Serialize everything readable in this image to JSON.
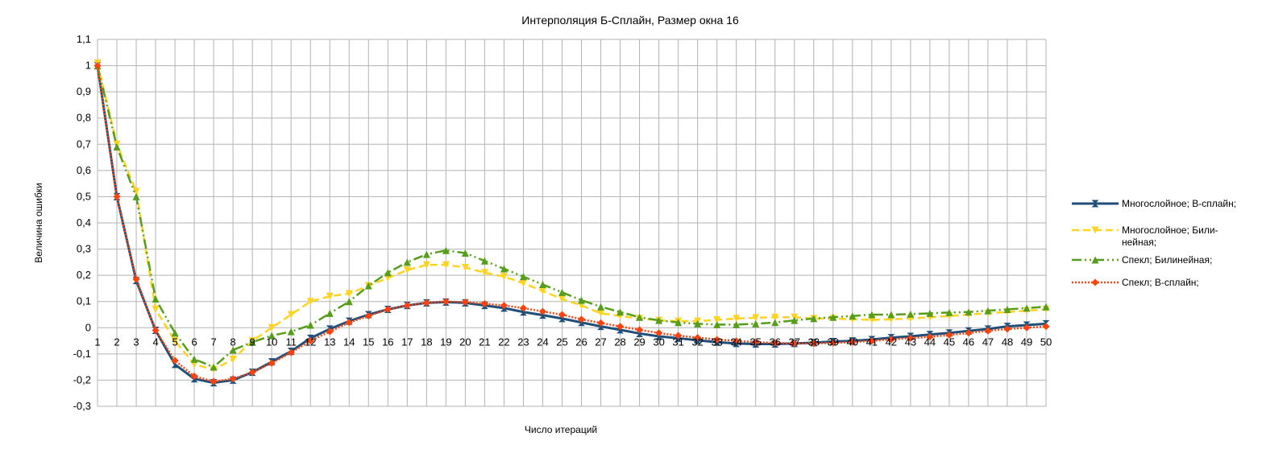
{
  "chart_data": {
    "type": "line",
    "title": "Интерполяция Б-Сплайн, Размер окна 16",
    "xlabel": "Число итераций",
    "ylabel": "Величина ошибки",
    "ylim": [
      -0.3,
      1.1
    ],
    "ytick_labels": [
      "1,1",
      "1",
      "0,9",
      "0,8",
      "0,7",
      "0,6",
      "0,5",
      "0,4",
      "0,3",
      "0,2",
      "0,1",
      "0",
      "-0,1",
      "-0,2",
      "-0,3"
    ],
    "x": [
      1,
      2,
      3,
      4,
      5,
      6,
      7,
      8,
      9,
      10,
      11,
      12,
      13,
      14,
      15,
      16,
      17,
      18,
      19,
      20,
      21,
      22,
      23,
      24,
      25,
      26,
      27,
      28,
      29,
      30,
      31,
      32,
      33,
      34,
      35,
      36,
      37,
      38,
      39,
      40,
      41,
      42,
      43,
      44,
      45,
      46,
      47,
      48,
      49,
      50
    ],
    "grid": true,
    "legend_position": "right",
    "series": [
      {
        "name": "Многослойное; B-сплайн;",
        "color": "#1f4e79",
        "marker": "hourglass",
        "values": [
          1.0,
          0.5,
          0.18,
          -0.01,
          -0.14,
          -0.195,
          -0.21,
          -0.2,
          -0.17,
          -0.13,
          -0.09,
          -0.04,
          -0.005,
          0.025,
          0.05,
          0.07,
          0.085,
          0.095,
          0.098,
          0.095,
          0.085,
          0.075,
          0.06,
          0.048,
          0.035,
          0.02,
          0.005,
          -0.008,
          -0.022,
          -0.033,
          -0.04,
          -0.048,
          -0.055,
          -0.06,
          -0.062,
          -0.062,
          -0.06,
          -0.057,
          -0.053,
          -0.05,
          -0.045,
          -0.038,
          -0.033,
          -0.026,
          -0.02,
          -0.012,
          -0.005,
          0.005,
          0.01,
          0.015
        ]
      },
      {
        "name": "Многослойное; Билинейная;",
        "color": "#ffd320",
        "marker": "triangle-down",
        "values": [
          1.01,
          0.7,
          0.52,
          0.07,
          -0.05,
          -0.14,
          -0.16,
          -0.12,
          -0.05,
          0.0,
          0.05,
          0.1,
          0.12,
          0.13,
          0.16,
          0.19,
          0.22,
          0.24,
          0.24,
          0.23,
          0.21,
          0.195,
          0.17,
          0.14,
          0.11,
          0.085,
          0.055,
          0.045,
          0.035,
          0.028,
          0.025,
          0.025,
          0.03,
          0.035,
          0.038,
          0.04,
          0.04,
          0.035,
          0.035,
          0.032,
          0.03,
          0.032,
          0.035,
          0.04,
          0.045,
          0.05,
          0.055,
          0.06,
          0.065,
          0.07
        ]
      },
      {
        "name": "Спекл; Билинейная;",
        "color": "#579d1c",
        "marker": "triangle-up",
        "values": [
          1.0,
          0.69,
          0.5,
          0.11,
          -0.02,
          -0.12,
          -0.15,
          -0.085,
          -0.055,
          -0.03,
          -0.015,
          0.01,
          0.055,
          0.1,
          0.16,
          0.21,
          0.25,
          0.28,
          0.295,
          0.285,
          0.255,
          0.225,
          0.195,
          0.165,
          0.135,
          0.105,
          0.08,
          0.06,
          0.04,
          0.028,
          0.02,
          0.015,
          0.012,
          0.012,
          0.015,
          0.02,
          0.028,
          0.035,
          0.04,
          0.045,
          0.05,
          0.05,
          0.052,
          0.055,
          0.058,
          0.06,
          0.065,
          0.07,
          0.075,
          0.08
        ]
      },
      {
        "name": "Спекл; B-сплайн;",
        "color": "#ff420e",
        "marker": "diamond",
        "values": [
          1.0,
          0.5,
          0.185,
          -0.01,
          -0.125,
          -0.185,
          -0.205,
          -0.195,
          -0.17,
          -0.135,
          -0.095,
          -0.05,
          -0.015,
          0.02,
          0.045,
          0.07,
          0.085,
          0.095,
          0.1,
          0.098,
          0.092,
          0.085,
          0.075,
          0.062,
          0.05,
          0.032,
          0.018,
          0.005,
          -0.008,
          -0.02,
          -0.03,
          -0.038,
          -0.045,
          -0.05,
          -0.055,
          -0.058,
          -0.06,
          -0.06,
          -0.058,
          -0.055,
          -0.05,
          -0.045,
          -0.04,
          -0.035,
          -0.028,
          -0.02,
          -0.012,
          -0.005,
          0.0,
          0.005
        ]
      }
    ]
  }
}
